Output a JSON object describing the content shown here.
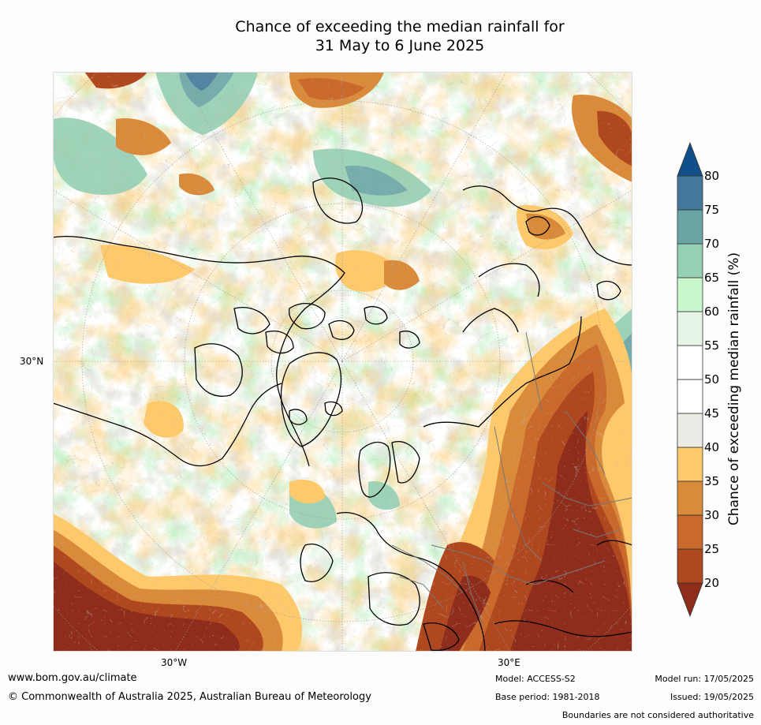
{
  "title": {
    "line1": "Chance of exceeding the median rainfall for",
    "line2": "31 May to 6 June 2025"
  },
  "axis_labels": {
    "lat_30n": "30°N",
    "lon_30w": "30°W",
    "lon_30e": "30°E"
  },
  "colorbar": {
    "title": "Chance of exceeding median rainfall (%)",
    "levels": [
      "20",
      "25",
      "30",
      "35",
      "40",
      "45",
      "50",
      "55",
      "60",
      "65",
      "70",
      "75",
      "80"
    ],
    "colors": [
      "#8e2d1c",
      "#b0481f",
      "#c9692c",
      "#d98a3a",
      "#fdc96a",
      "#ecebe6",
      "#ffffff",
      "#ffffff",
      "#e6f5e6",
      "#c8f7cc",
      "#95cfb4",
      "#6aa5a6",
      "#44789a",
      "#114f8a"
    ]
  },
  "footer": {
    "website": "www.bom.gov.au/climate",
    "copyright": "© Commonwealth of Australia 2025, Australian Bureau of Meteorology",
    "model": "Model: ACCESS-S2",
    "base_period": "Base period: 1981-2018",
    "model_run": "Model run: 17/05/2025",
    "issued": "Issued: 19/05/2025",
    "disclaimer": "Boundaries are not considered authoritative"
  }
}
